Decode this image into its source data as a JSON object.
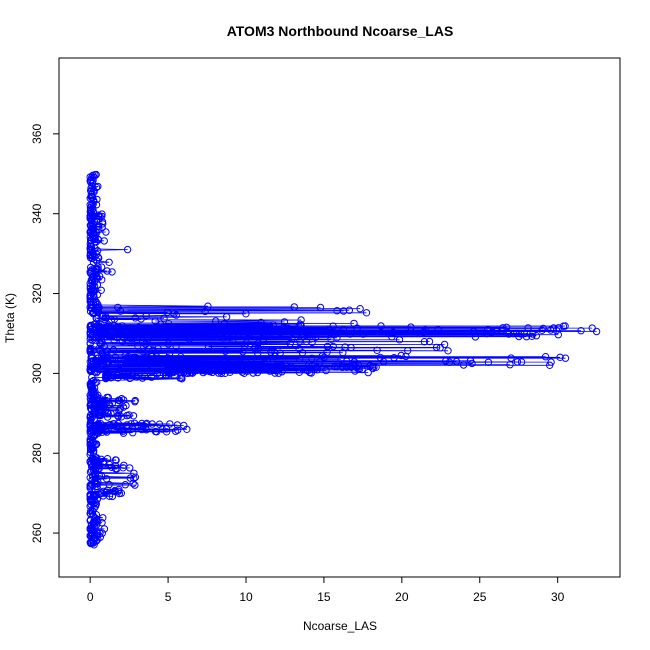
{
  "chart_data": {
    "type": "scatter",
    "title": "ATOM3 Northbound Ncoarse_LAS",
    "xlabel": "Ncoarse_LAS",
    "ylabel": "Theta (K)",
    "xlim": [
      -2,
      34
    ],
    "ylim": [
      249,
      379
    ],
    "xticks": [
      0,
      5,
      10,
      15,
      20,
      25,
      30
    ],
    "yticks": [
      260,
      280,
      300,
      320,
      340,
      360
    ],
    "grid": false,
    "legend": "none",
    "point_style": "open-circle",
    "line_style": "connected",
    "series": [
      {
        "color": "#0000ff",
        "clusters": [
          {
            "theta_range": [
              257,
              350
            ],
            "x_range": [
              0,
              0.5
            ],
            "n": 420
          },
          {
            "theta_range": [
              309,
              312
            ],
            "x_range": [
              0.5,
              32.5
            ],
            "n": 160
          },
          {
            "theta_range": [
              311,
              317
            ],
            "x_range": [
              0.5,
              20
            ],
            "n": 60
          },
          {
            "theta_range": [
              305,
              309
            ],
            "x_range": [
              0.5,
              23
            ],
            "n": 70
          },
          {
            "theta_range": [
              302,
              304.5
            ],
            "x_range": [
              0.5,
              30.5
            ],
            "n": 90
          },
          {
            "theta_range": [
              300,
              302
            ],
            "x_range": [
              5,
              19
            ],
            "n": 150
          },
          {
            "theta_range": [
              298.5,
              300
            ],
            "x_range": [
              1,
              6
            ],
            "n": 40
          },
          {
            "theta_range": [
              289,
              294
            ],
            "x_range": [
              0.5,
              3
            ],
            "n": 60
          },
          {
            "theta_range": [
              285,
              287.5
            ],
            "x_range": [
              0.5,
              6.2
            ],
            "n": 60
          },
          {
            "theta_range": [
              276,
              279
            ],
            "x_range": [
              0.3,
              2.6
            ],
            "n": 25
          },
          {
            "theta_range": [
              269,
              271
            ],
            "x_range": [
              0.3,
              2
            ],
            "n": 20
          },
          {
            "theta_range": [
              272,
              275
            ],
            "x_range": [
              0.3,
              3
            ],
            "n": 15
          },
          {
            "theta_range": [
              258,
              264
            ],
            "x_range": [
              0.3,
              1
            ],
            "n": 15
          },
          {
            "theta_range": [
              318,
              340
            ],
            "x_range": [
              0.5,
              1.6
            ],
            "n": 25
          }
        ],
        "notable_points": [
          {
            "x": 32.5,
            "y": 310.5
          },
          {
            "x": 31.5,
            "y": 310.7
          },
          {
            "x": 30.5,
            "y": 303.8
          },
          {
            "x": 29.0,
            "y": 310.8
          },
          {
            "x": 28.0,
            "y": 309.2
          },
          {
            "x": 24.5,
            "y": 302.5
          },
          {
            "x": 6.2,
            "y": 286
          },
          {
            "x": 2.4,
            "y": 331
          },
          {
            "x": 2.9,
            "y": 274
          },
          {
            "x": 2.0,
            "y": 270
          }
        ]
      }
    ]
  }
}
